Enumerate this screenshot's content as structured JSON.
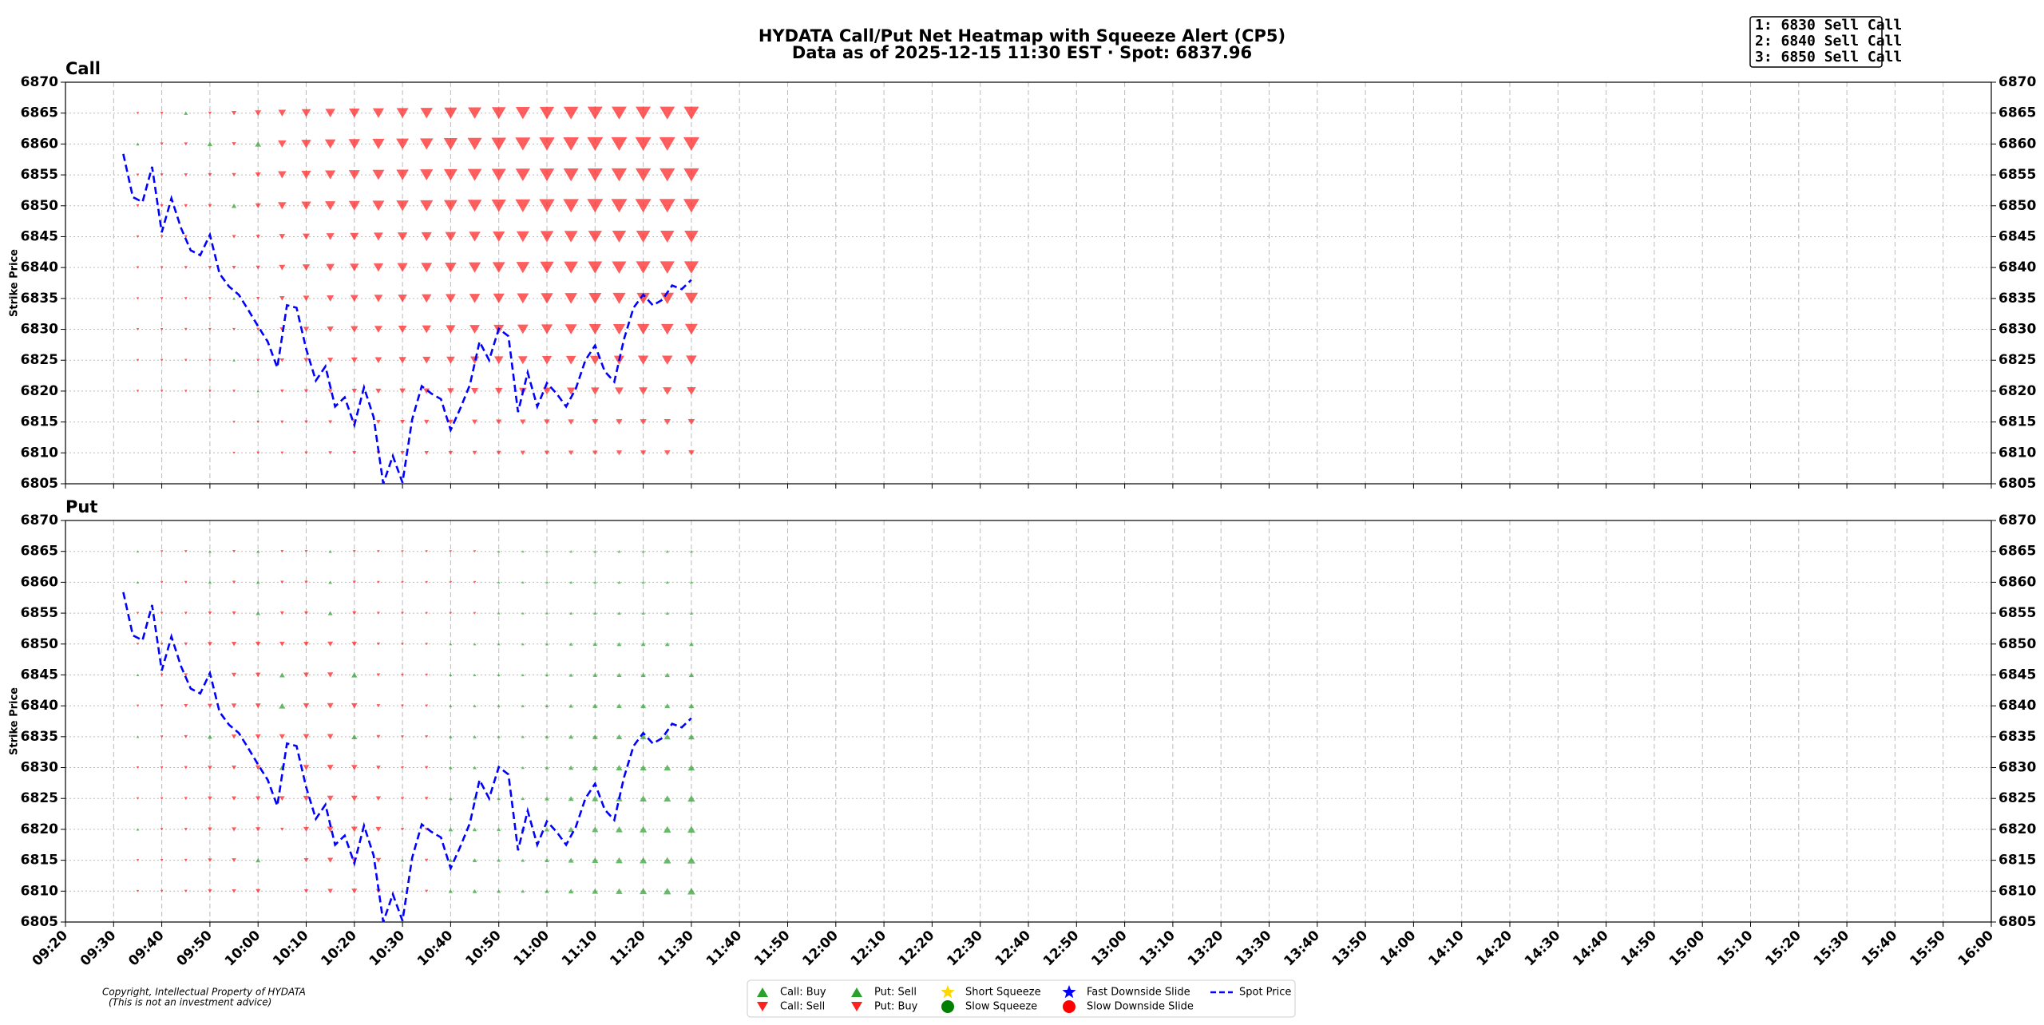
{
  "header": {
    "title": "HYDATA Call/Put Net Heatmap with Squeeze Alert (CP5)",
    "subtitle": "Data as of 2025-12-15 11:30 EST · Spot: 6837.96",
    "alerts": [
      "1: 6830 Sell Call",
      "2: 6840 Sell Call",
      "3: 6850 Sell Call"
    ]
  },
  "chart_data": [
    {
      "type": "triangle-heatmap",
      "title": "Call",
      "ylabel": "Strike Price",
      "pos_color": "#2ca02c",
      "neg_color": "#ff2020",
      "grid": true,
      "x": [
        "09:35",
        "09:40",
        "09:45",
        "09:50",
        "09:55",
        "10:00",
        "10:05",
        "10:10",
        "10:15",
        "10:20",
        "10:25",
        "10:30",
        "10:35",
        "10:40",
        "10:45",
        "10:50",
        "10:55",
        "11:00",
        "11:05",
        "11:10",
        "11:15",
        "11:20",
        "11:25",
        "11:30"
      ],
      "strikes": [
        6810,
        6815,
        6820,
        6825,
        6830,
        6835,
        6840,
        6845,
        6850,
        6855,
        6860,
        6865
      ],
      "net": [
        [
          0,
          0,
          0,
          0,
          -3,
          -5,
          -6,
          -8,
          -10,
          -12,
          -13,
          -14,
          -15,
          -16,
          -17,
          -18,
          -19,
          -20,
          -21,
          -22,
          -24,
          -25,
          -26,
          -27
        ],
        [
          0,
          0,
          0,
          0,
          -3,
          -5,
          -8,
          -10,
          -12,
          -14,
          -16,
          -18,
          -20,
          -22,
          -24,
          -25,
          -26,
          -27,
          -28,
          -30,
          -30,
          -31,
          -32,
          -33
        ],
        [
          -3,
          -3,
          -4,
          -4,
          -5,
          3,
          -10,
          -14,
          -18,
          -22,
          -25,
          -28,
          -30,
          -33,
          -36,
          -38,
          -40,
          -42,
          -44,
          -45,
          -46,
          -47,
          -48,
          -50
        ],
        [
          -3,
          -4,
          -4,
          -5,
          4,
          -6,
          -14,
          -20,
          -25,
          -30,
          -34,
          -38,
          -42,
          -45,
          -48,
          -50,
          -52,
          -55,
          -57,
          -58,
          -60,
          -61,
          -62,
          -63
        ],
        [
          -3,
          -4,
          -5,
          -6,
          -6,
          -8,
          -18,
          -26,
          -32,
          -38,
          -42,
          -46,
          -50,
          -54,
          -58,
          -60,
          -64,
          -67,
          -70,
          -72,
          -73,
          -74,
          -75,
          -76
        ],
        [
          -3,
          -4,
          -5,
          -6,
          5,
          -8,
          -22,
          -30,
          -36,
          -42,
          -46,
          -50,
          -55,
          -58,
          -62,
          -66,
          -70,
          -73,
          -75,
          -77,
          -78,
          -79,
          -80,
          -80
        ],
        [
          -5,
          -6,
          -8,
          -10,
          -12,
          -15,
          -30,
          -38,
          -45,
          -50,
          -55,
          -60,
          -64,
          -68,
          -72,
          -76,
          -80,
          -84,
          -86,
          -88,
          -89,
          -90,
          -90,
          -90
        ],
        [
          -5,
          -6,
          -8,
          10,
          -12,
          -14,
          -28,
          -36,
          -42,
          -48,
          -52,
          -56,
          -60,
          -64,
          -68,
          -72,
          -76,
          -80,
          -82,
          -84,
          -85,
          -86,
          -86,
          -86
        ],
        [
          -6,
          -8,
          -10,
          -12,
          20,
          -25,
          -45,
          -55,
          -60,
          -65,
          -70,
          -74,
          -78,
          -82,
          -86,
          -90,
          -94,
          -96,
          -98,
          -100,
          -100,
          -100,
          -100,
          -100
        ],
        [
          -5,
          -8,
          -10,
          -12,
          -14,
          -25,
          -45,
          -55,
          -60,
          -65,
          -70,
          -74,
          -78,
          -82,
          -86,
          -88,
          -90,
          -92,
          -94,
          -95,
          -96,
          -96,
          -96,
          -96
        ],
        [
          8,
          -8,
          -10,
          20,
          -14,
          28,
          -45,
          -55,
          -62,
          -68,
          -72,
          -76,
          -80,
          -84,
          -88,
          -92,
          -95,
          -97,
          -98,
          -100,
          -100,
          -100,
          -100,
          -100
        ],
        [
          -3,
          -6,
          12,
          -8,
          -20,
          -30,
          -40,
          -50,
          -56,
          -62,
          -66,
          -70,
          -74,
          -78,
          -82,
          -86,
          -88,
          -90,
          -92,
          -94,
          -94,
          -94,
          -94,
          -94
        ]
      ],
      "xlim": [
        "09:20",
        "16:00"
      ],
      "xticks": [
        "09:20",
        "09:30",
        "09:40",
        "09:50",
        "10:00",
        "10:10",
        "10:20",
        "10:30",
        "10:40",
        "10:50",
        "11:00",
        "11:10",
        "11:20",
        "11:30",
        "11:40",
        "11:50",
        "12:00",
        "12:10",
        "12:20",
        "12:30",
        "12:40",
        "12:50",
        "13:00",
        "13:10",
        "13:20",
        "13:30",
        "13:40",
        "13:50",
        "14:00",
        "14:10",
        "14:20",
        "14:30",
        "14:40",
        "14:50",
        "15:00",
        "15:10",
        "15:20",
        "15:30",
        "15:40",
        "15:50",
        "16:00"
      ],
      "ylim": [
        6805,
        6870
      ],
      "yticks": [
        6805,
        6810,
        6815,
        6820,
        6825,
        6830,
        6835,
        6840,
        6845,
        6850,
        6855,
        6860,
        6865,
        6870
      ]
    },
    {
      "type": "triangle-heatmap",
      "title": "Put",
      "ylabel": "Strike Price",
      "pos_color": "#2ca02c",
      "neg_color": "#ff2020",
      "grid": true,
      "x": [
        "09:35",
        "09:40",
        "09:45",
        "09:50",
        "09:55",
        "10:00",
        "10:05",
        "10:10",
        "10:15",
        "10:20",
        "10:25",
        "10:30",
        "10:35",
        "10:40",
        "10:45",
        "10:50",
        "10:55",
        "11:00",
        "11:05",
        "11:10",
        "11:15",
        "11:20",
        "11:25",
        "11:30"
      ],
      "strikes": [
        6810,
        6815,
        6820,
        6825,
        6830,
        6835,
        6840,
        6845,
        6850,
        6855,
        6860,
        6865
      ],
      "net": [
        [
          -3,
          -4,
          -6,
          -12,
          -14,
          -18,
          0,
          -15,
          -22,
          -25,
          -20,
          5,
          -6,
          14,
          16,
          12,
          10,
          15,
          22,
          28,
          32,
          36,
          38,
          40
        ],
        [
          -3,
          -4,
          -6,
          -14,
          -16,
          18,
          0,
          -18,
          -25,
          -28,
          -22,
          6,
          -8,
          14,
          16,
          10,
          10,
          16,
          24,
          30,
          34,
          36,
          38,
          40
        ],
        [
          4,
          -5,
          -8,
          -16,
          -18,
          -20,
          -10,
          -25,
          -30,
          -30,
          -24,
          -8,
          -10,
          16,
          14,
          12,
          12,
          18,
          26,
          30,
          34,
          36,
          38,
          40
        ],
        [
          -3,
          -5,
          -8,
          -16,
          -18,
          -20,
          -22,
          -28,
          -30,
          -30,
          -20,
          -8,
          -10,
          10,
          12,
          8,
          8,
          16,
          24,
          30,
          32,
          34,
          36,
          38
        ],
        [
          -3,
          -5,
          -8,
          -16,
          -18,
          -22,
          24,
          -28,
          -30,
          -28,
          -16,
          -6,
          -8,
          10,
          10,
          6,
          6,
          12,
          20,
          26,
          30,
          32,
          34,
          34
        ],
        [
          3,
          -5,
          -10,
          18,
          -20,
          -24,
          -26,
          -28,
          -28,
          26,
          -12,
          -6,
          -6,
          8,
          8,
          6,
          6,
          10,
          18,
          24,
          26,
          28,
          30,
          30
        ],
        [
          -3,
          -6,
          -12,
          -18,
          -22,
          -24,
          30,
          -28,
          -30,
          -28,
          -10,
          -5,
          -5,
          6,
          6,
          5,
          6,
          8,
          14,
          20,
          22,
          24,
          24,
          24
        ],
        [
          3,
          -6,
          -12,
          18,
          -20,
          -22,
          24,
          -24,
          -26,
          26,
          -10,
          -5,
          -4,
          5,
          5,
          4,
          5,
          6,
          12,
          16,
          18,
          20,
          20,
          20
        ],
        [
          -3,
          -5,
          -10,
          -18,
          -20,
          -22,
          -22,
          -22,
          -24,
          -22,
          -8,
          -4,
          -4,
          4,
          4,
          4,
          5,
          6,
          10,
          14,
          16,
          16,
          16,
          16
        ],
        [
          -3,
          -4,
          -6,
          -10,
          -12,
          16,
          -12,
          -12,
          18,
          -14,
          -6,
          -4,
          -3,
          -3,
          -3,
          3,
          3,
          4,
          6,
          8,
          8,
          8,
          8,
          8
        ],
        [
          3,
          -3,
          -5,
          8,
          -8,
          10,
          -8,
          -8,
          10,
          -8,
          -5,
          -3,
          -3,
          -3,
          -3,
          3,
          3,
          3,
          5,
          6,
          6,
          6,
          6,
          6
        ],
        [
          2,
          -3,
          -4,
          6,
          -6,
          8,
          -6,
          -6,
          8,
          -6,
          -4,
          -3,
          -3,
          -3,
          -3,
          3,
          3,
          3,
          4,
          5,
          5,
          5,
          5,
          5
        ]
      ],
      "xlim": [
        "09:20",
        "16:00"
      ],
      "xticks": [
        "09:20",
        "09:30",
        "09:40",
        "09:50",
        "10:00",
        "10:10",
        "10:20",
        "10:30",
        "10:40",
        "10:50",
        "11:00",
        "11:10",
        "11:20",
        "11:30",
        "11:40",
        "11:50",
        "12:00",
        "12:10",
        "12:20",
        "12:30",
        "12:40",
        "12:50",
        "13:00",
        "13:10",
        "13:20",
        "13:30",
        "13:40",
        "13:50",
        "14:00",
        "14:10",
        "14:20",
        "14:30",
        "14:40",
        "14:50",
        "15:00",
        "15:10",
        "15:20",
        "15:30",
        "15:40",
        "15:50",
        "16:00"
      ],
      "ylim": [
        6805,
        6870
      ],
      "yticks": [
        6805,
        6810,
        6815,
        6820,
        6825,
        6830,
        6835,
        6840,
        6845,
        6850,
        6855,
        6860,
        6865,
        6870
      ]
    }
  ],
  "spot": {
    "color": "#0000ff",
    "x": [
      "09:32",
      "09:34",
      "09:36",
      "09:38",
      "09:40",
      "09:42",
      "09:44",
      "09:46",
      "09:48",
      "09:50",
      "09:52",
      "09:54",
      "09:56",
      "09:58",
      "10:00",
      "10:02",
      "10:04",
      "10:06",
      "10:08",
      "10:10",
      "10:12",
      "10:14",
      "10:16",
      "10:18",
      "10:20",
      "10:22",
      "10:24",
      "10:26",
      "10:28",
      "10:30",
      "10:32",
      "10:34",
      "10:36",
      "10:38",
      "10:40",
      "10:42",
      "10:44",
      "10:46",
      "10:48",
      "10:50",
      "10:52",
      "10:54",
      "10:56",
      "10:58",
      "11:00",
      "11:02",
      "11:04",
      "11:06",
      "11:08",
      "11:10",
      "11:12",
      "11:14",
      "11:16",
      "11:18",
      "11:20",
      "11:22",
      "11:24",
      "11:26",
      "11:28",
      "11:30"
    ],
    "values": [
      6858.4,
      6851.4,
      6850.6,
      6856.3,
      6845.7,
      6851.2,
      6846.4,
      6842.8,
      6842.0,
      6845.3,
      6839.0,
      6836.9,
      6835.6,
      6833.1,
      6830.5,
      6828.0,
      6823.8,
      6833.9,
      6833.5,
      6826.8,
      6821.7,
      6824.0,
      6817.5,
      6819.0,
      6814.5,
      6820.6,
      6815.8,
      6805.0,
      6809.5,
      6805.2,
      6815.4,
      6820.8,
      6819.6,
      6818.7,
      6813.7,
      6817.2,
      6821.0,
      6828.0,
      6825.0,
      6830.1,
      6828.9,
      6816.6,
      6823.0,
      6817.5,
      6821.3,
      6819.6,
      6817.5,
      6820.4,
      6825.0,
      6827.4,
      6823.2,
      6821.5,
      6828.4,
      6833.5,
      6835.6,
      6833.9,
      6834.8,
      6837.1,
      6836.5,
      6838
    ]
  },
  "legend": [
    {
      "label": "Call: Buy",
      "marker": "^",
      "color": "#2ca02c"
    },
    {
      "label": "Call: Sell",
      "marker": "v",
      "color": "#ff2020"
    },
    {
      "label": "Put: Sell",
      "marker": "^",
      "color": "#2ca02c"
    },
    {
      "label": "Put: Buy",
      "marker": "v",
      "color": "#ff2020"
    },
    {
      "label": "Short Squeeze",
      "marker": "*",
      "color": "#ffd700"
    },
    {
      "label": "Slow Squeeze",
      "marker": "o",
      "color": "#008000"
    },
    {
      "label": "Fast Downside Slide",
      "marker": "*",
      "color": "#0000ff"
    },
    {
      "label": "Slow Downside Slide",
      "marker": "o",
      "color": "#ff0000"
    },
    {
      "label": "Spot Price",
      "marker": "--",
      "color": "#0000ff"
    }
  ],
  "copyright": [
    "Copyright, Intellectual Property of HYDATA",
    "(This is not an investment advice)"
  ]
}
